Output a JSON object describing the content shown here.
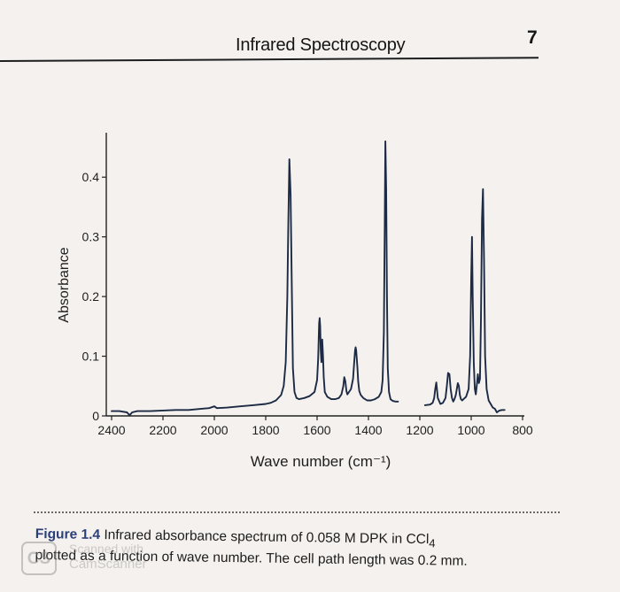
{
  "header": {
    "title": "Infrared Spectroscopy",
    "page_number": "7"
  },
  "chart_data": {
    "type": "line",
    "title": "",
    "xlabel": "Wave number (cm⁻¹)",
    "ylabel": "Absorbance",
    "xlim": [
      2400,
      800
    ],
    "ylim": [
      0,
      0.47
    ],
    "x_reversed": true,
    "grid": false,
    "x_ticks": [
      2400,
      2200,
      2000,
      1800,
      1600,
      1400,
      1200,
      1000,
      800
    ],
    "x_tick_labels": [
      "2400",
      "2200",
      "2000",
      "1800",
      "1600",
      "1400",
      "1200",
      "1000",
      "800"
    ],
    "y_ticks": [
      0,
      0.1,
      0.2,
      0.3,
      0.4
    ],
    "y_tick_labels": [
      "0",
      "0.1",
      "0.2",
      "0.3",
      "0.4"
    ],
    "series": [
      {
        "color": "#1c2a44",
        "segments": [
          {
            "x": [
              2400,
              2370,
              2340,
              2330,
              2320,
              2300,
              2250,
              2200,
              2150,
              2100,
              2050,
              2020,
              2000,
              1990,
              1950,
              1900,
              1850,
              1800,
              1780,
              1760,
              1740,
              1730,
              1722,
              1716,
              1712,
              1708,
              1703,
              1698,
              1694,
              1688,
              1680,
              1670,
              1650,
              1630,
              1610,
              1600,
              1596,
              1592,
              1590,
              1588,
              1586,
              1583,
              1580,
              1577,
              1574,
              1570,
              1560,
              1545,
              1530,
              1515,
              1505,
              1498,
              1494,
              1490,
              1486,
              1482,
              1476,
              1468,
              1460,
              1454,
              1452,
              1450,
              1448,
              1446,
              1443,
              1440,
              1436,
              1430,
              1420,
              1405,
              1390,
              1375,
              1360,
              1350,
              1345,
              1340,
              1337,
              1334,
              1331,
              1328,
              1325,
              1320,
              1314,
              1305,
              1295,
              1285
            ],
            "y": [
              0.008,
              0.008,
              0.006,
              0.001,
              0.006,
              0.008,
              0.008,
              0.009,
              0.01,
              0.01,
              0.012,
              0.013,
              0.016,
              0.013,
              0.014,
              0.016,
              0.018,
              0.02,
              0.022,
              0.026,
              0.035,
              0.05,
              0.09,
              0.2,
              0.32,
              0.43,
              0.37,
              0.2,
              0.08,
              0.04,
              0.03,
              0.028,
              0.03,
              0.033,
              0.04,
              0.06,
              0.095,
              0.155,
              0.164,
              0.15,
              0.11,
              0.09,
              0.128,
              0.1,
              0.065,
              0.04,
              0.032,
              0.028,
              0.028,
              0.03,
              0.036,
              0.05,
              0.065,
              0.058,
              0.042,
              0.036,
              0.04,
              0.045,
              0.062,
              0.098,
              0.11,
              0.115,
              0.11,
              0.098,
              0.082,
              0.058,
              0.042,
              0.035,
              0.03,
              0.026,
              0.026,
              0.028,
              0.032,
              0.04,
              0.06,
              0.14,
              0.3,
              0.46,
              0.38,
              0.2,
              0.08,
              0.04,
              0.028,
              0.025,
              0.024,
              0.024
            ]
          },
          {
            "x": [
              1180,
              1160,
              1150,
              1144,
              1140,
              1136,
              1130,
              1120,
              1110,
              1100,
              1095,
              1090,
              1085,
              1080,
              1075,
              1070,
              1065,
              1060,
              1052,
              1048,
              1044,
              1040,
              1035,
              1030,
              1020,
              1010,
              1004,
              1000,
              997,
              994,
              990,
              986,
              982,
              978,
              974,
              970,
              966,
              962,
              958,
              954,
              950,
              946,
              940,
              932,
              924,
              916,
              908,
              900,
              890,
              880,
              870
            ],
            "y": [
              0.018,
              0.019,
              0.022,
              0.03,
              0.045,
              0.056,
              0.03,
              0.02,
              0.022,
              0.03,
              0.05,
              0.072,
              0.07,
              0.045,
              0.03,
              0.024,
              0.028,
              0.035,
              0.055,
              0.05,
              0.035,
              0.028,
              0.026,
              0.028,
              0.032,
              0.045,
              0.1,
              0.23,
              0.3,
              0.2,
              0.09,
              0.045,
              0.036,
              0.052,
              0.07,
              0.055,
              0.062,
              0.16,
              0.33,
              0.38,
              0.26,
              0.1,
              0.045,
              0.026,
              0.02,
              0.014,
              0.012,
              0.006,
              0.009,
              0.01,
              0.01
            ]
          }
        ]
      }
    ]
  },
  "caption": {
    "label": "Figure 1.4",
    "text_line1": "Infrared absorbance spectrum of 0.058 M DPK in CCl",
    "subscript": "4",
    "text_line2": "plotted as a function of wave number. The cell path length was 0.2 mm."
  },
  "watermark": {
    "badge": "CS",
    "line1": "Scanned with",
    "line2": "CamScanner"
  }
}
